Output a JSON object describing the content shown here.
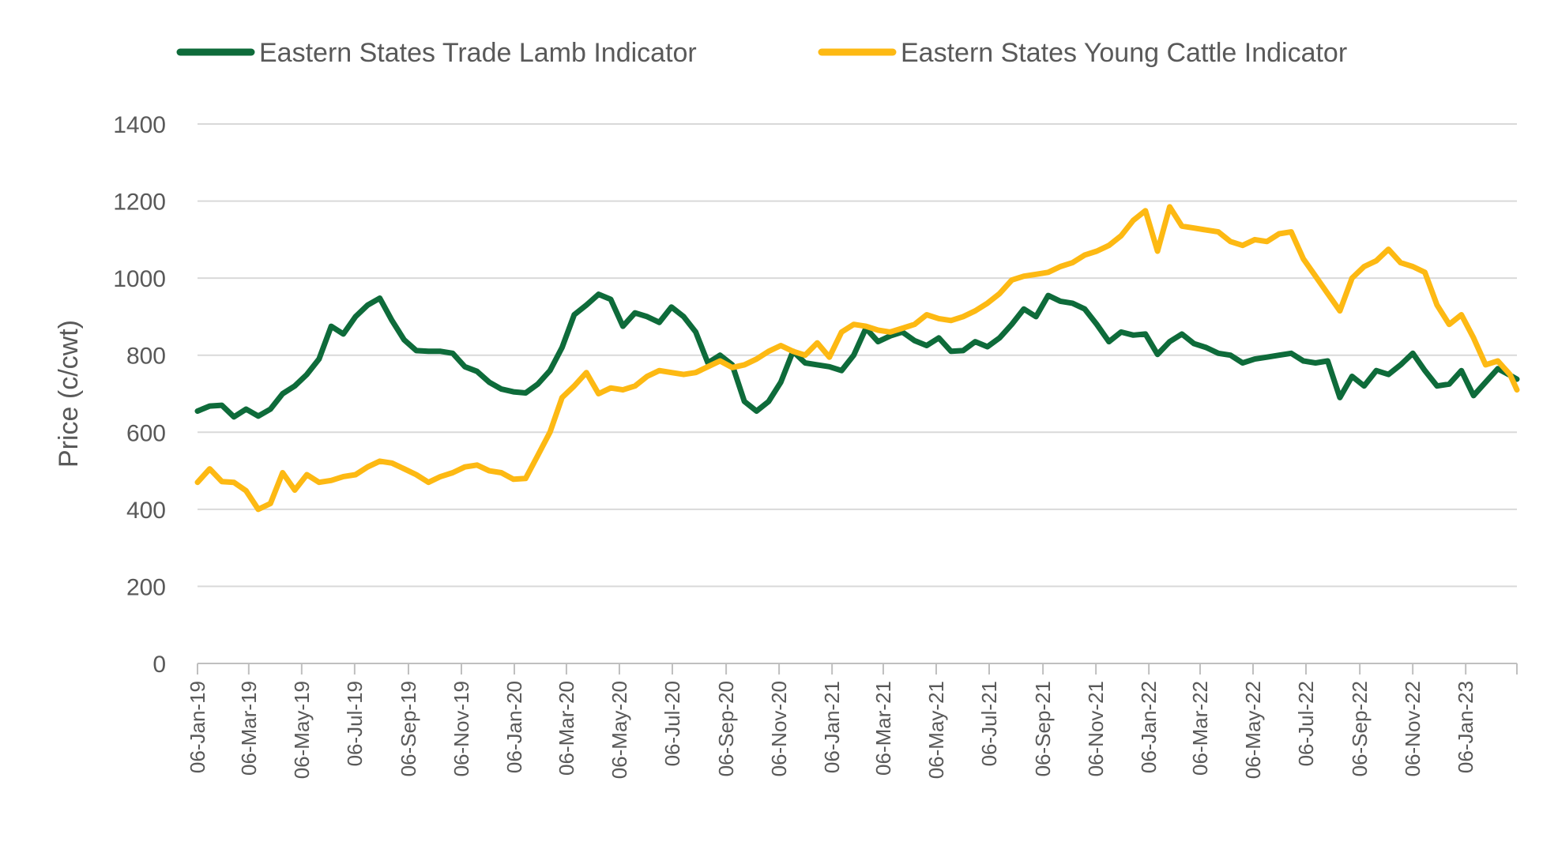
{
  "chart_data": {
    "type": "line",
    "ylabel": "Price (c/cwt)",
    "ylim": [
      0,
      1400
    ],
    "yticks": [
      0,
      200,
      400,
      600,
      800,
      1000,
      1200,
      1400
    ],
    "xlim": [
      "2019-01-06",
      "2023-03-06"
    ],
    "xtick_dates": [
      "2019-01-06",
      "2019-03-06",
      "2019-05-06",
      "2019-07-06",
      "2019-09-06",
      "2019-11-06",
      "2020-01-06",
      "2020-03-06",
      "2020-05-06",
      "2020-07-06",
      "2020-09-06",
      "2020-11-06",
      "2021-01-06",
      "2021-03-06",
      "2021-05-06",
      "2021-07-06",
      "2021-09-06",
      "2021-11-06",
      "2022-01-06",
      "2022-03-06",
      "2022-05-06",
      "2022-07-06",
      "2022-09-06",
      "2022-11-06",
      "2023-01-06"
    ],
    "xtick_labels": [
      "06-Jan-19",
      "06-Mar-19",
      "06-May-19",
      "06-Jul-19",
      "06-Sep-19",
      "06-Nov-19",
      "06-Jan-20",
      "06-Mar-20",
      "06-May-20",
      "06-Jul-20",
      "06-Sep-20",
      "06-Nov-20",
      "06-Jan-21",
      "06-Mar-21",
      "06-May-21",
      "06-Jul-21",
      "06-Sep-21",
      "06-Nov-21",
      "06-Jan-22",
      "06-Mar-22",
      "06-May-22",
      "06-Jul-22",
      "06-Sep-22",
      "06-Nov-22",
      "06-Jan-23"
    ],
    "grid": true,
    "legend_position": "top",
    "series": [
      {
        "name": "Eastern States Trade Lamb Indicator",
        "color": "#0E6B3A",
        "points": [
          [
            "2019-01-06",
            655
          ],
          [
            "2019-01-20",
            668
          ],
          [
            "2019-02-03",
            670
          ],
          [
            "2019-02-17",
            640
          ],
          [
            "2019-03-03",
            660
          ],
          [
            "2019-03-17",
            642
          ],
          [
            "2019-03-31",
            660
          ],
          [
            "2019-04-14",
            700
          ],
          [
            "2019-04-28",
            720
          ],
          [
            "2019-05-12",
            750
          ],
          [
            "2019-05-26",
            790
          ],
          [
            "2019-06-09",
            875
          ],
          [
            "2019-06-23",
            855
          ],
          [
            "2019-07-07",
            900
          ],
          [
            "2019-07-21",
            930
          ],
          [
            "2019-08-04",
            948
          ],
          [
            "2019-08-18",
            890
          ],
          [
            "2019-09-01",
            840
          ],
          [
            "2019-09-15",
            812
          ],
          [
            "2019-09-29",
            810
          ],
          [
            "2019-10-13",
            810
          ],
          [
            "2019-10-27",
            805
          ],
          [
            "2019-11-10",
            770
          ],
          [
            "2019-11-24",
            758
          ],
          [
            "2019-12-08",
            730
          ],
          [
            "2019-12-22",
            712
          ],
          [
            "2020-01-05",
            705
          ],
          [
            "2020-01-19",
            702
          ],
          [
            "2020-02-02",
            725
          ],
          [
            "2020-02-16",
            760
          ],
          [
            "2020-03-01",
            820
          ],
          [
            "2020-03-15",
            905
          ],
          [
            "2020-03-29",
            930
          ],
          [
            "2020-04-12",
            958
          ],
          [
            "2020-04-26",
            945
          ],
          [
            "2020-05-10",
            875
          ],
          [
            "2020-05-24",
            910
          ],
          [
            "2020-06-07",
            900
          ],
          [
            "2020-06-21",
            885
          ],
          [
            "2020-07-05",
            925
          ],
          [
            "2020-07-19",
            900
          ],
          [
            "2020-08-02",
            860
          ],
          [
            "2020-08-16",
            780
          ],
          [
            "2020-08-30",
            800
          ],
          [
            "2020-09-13",
            775
          ],
          [
            "2020-09-27",
            680
          ],
          [
            "2020-10-11",
            655
          ],
          [
            "2020-10-25",
            680
          ],
          [
            "2020-11-08",
            730
          ],
          [
            "2020-11-22",
            810
          ],
          [
            "2020-12-06",
            780
          ],
          [
            "2020-12-20",
            775
          ],
          [
            "2021-01-03",
            770
          ],
          [
            "2021-01-17",
            760
          ],
          [
            "2021-01-31",
            800
          ],
          [
            "2021-02-14",
            870
          ],
          [
            "2021-02-28",
            835
          ],
          [
            "2021-03-14",
            850
          ],
          [
            "2021-03-28",
            860
          ],
          [
            "2021-04-11",
            838
          ],
          [
            "2021-04-25",
            825
          ],
          [
            "2021-05-09",
            845
          ],
          [
            "2021-05-23",
            810
          ],
          [
            "2021-06-06",
            812
          ],
          [
            "2021-06-20",
            835
          ],
          [
            "2021-07-04",
            822
          ],
          [
            "2021-07-18",
            845
          ],
          [
            "2021-08-01",
            880
          ],
          [
            "2021-08-15",
            920
          ],
          [
            "2021-08-29",
            900
          ],
          [
            "2021-09-12",
            955
          ],
          [
            "2021-09-26",
            940
          ],
          [
            "2021-10-10",
            935
          ],
          [
            "2021-10-24",
            920
          ],
          [
            "2021-11-07",
            880
          ],
          [
            "2021-11-21",
            835
          ],
          [
            "2021-12-05",
            860
          ],
          [
            "2021-12-19",
            852
          ],
          [
            "2022-01-02",
            855
          ],
          [
            "2022-01-16",
            802
          ],
          [
            "2022-01-30",
            835
          ],
          [
            "2022-02-13",
            855
          ],
          [
            "2022-02-27",
            830
          ],
          [
            "2022-03-13",
            820
          ],
          [
            "2022-03-27",
            805
          ],
          [
            "2022-04-10",
            800
          ],
          [
            "2022-04-24",
            780
          ],
          [
            "2022-05-08",
            790
          ],
          [
            "2022-05-22",
            795
          ],
          [
            "2022-06-05",
            800
          ],
          [
            "2022-06-19",
            805
          ],
          [
            "2022-07-03",
            785
          ],
          [
            "2022-07-17",
            780
          ],
          [
            "2022-07-31",
            785
          ],
          [
            "2022-08-14",
            690
          ],
          [
            "2022-08-28",
            745
          ],
          [
            "2022-09-11",
            720
          ],
          [
            "2022-09-25",
            760
          ],
          [
            "2022-10-09",
            750
          ],
          [
            "2022-10-23",
            775
          ],
          [
            "2022-11-06",
            805
          ],
          [
            "2022-11-20",
            760
          ],
          [
            "2022-12-04",
            720
          ],
          [
            "2022-12-18",
            725
          ],
          [
            "2023-01-01",
            760
          ],
          [
            "2023-01-15",
            695
          ],
          [
            "2023-01-29",
            730
          ],
          [
            "2023-02-12",
            765
          ],
          [
            "2023-02-26",
            748
          ],
          [
            "2023-03-06",
            738
          ]
        ]
      },
      {
        "name": "Eastern States Young Cattle Indicator",
        "color": "#FDB913",
        "points": [
          [
            "2019-01-06",
            470
          ],
          [
            "2019-01-20",
            505
          ],
          [
            "2019-02-03",
            472
          ],
          [
            "2019-02-17",
            470
          ],
          [
            "2019-03-03",
            448
          ],
          [
            "2019-03-17",
            400
          ],
          [
            "2019-03-31",
            415
          ],
          [
            "2019-04-14",
            495
          ],
          [
            "2019-04-28",
            450
          ],
          [
            "2019-05-12",
            490
          ],
          [
            "2019-05-26",
            470
          ],
          [
            "2019-06-09",
            475
          ],
          [
            "2019-06-23",
            485
          ],
          [
            "2019-07-07",
            490
          ],
          [
            "2019-07-21",
            510
          ],
          [
            "2019-08-04",
            525
          ],
          [
            "2019-08-18",
            520
          ],
          [
            "2019-09-01",
            505
          ],
          [
            "2019-09-15",
            490
          ],
          [
            "2019-09-29",
            470
          ],
          [
            "2019-10-13",
            485
          ],
          [
            "2019-10-27",
            495
          ],
          [
            "2019-11-10",
            510
          ],
          [
            "2019-11-24",
            515
          ],
          [
            "2019-12-08",
            500
          ],
          [
            "2019-12-22",
            495
          ],
          [
            "2020-01-05",
            478
          ],
          [
            "2020-01-19",
            480
          ],
          [
            "2020-02-02",
            540
          ],
          [
            "2020-02-16",
            600
          ],
          [
            "2020-03-01",
            690
          ],
          [
            "2020-03-15",
            720
          ],
          [
            "2020-03-29",
            755
          ],
          [
            "2020-04-12",
            700
          ],
          [
            "2020-04-26",
            715
          ],
          [
            "2020-05-10",
            710
          ],
          [
            "2020-05-24",
            720
          ],
          [
            "2020-06-07",
            745
          ],
          [
            "2020-06-21",
            760
          ],
          [
            "2020-07-05",
            755
          ],
          [
            "2020-07-19",
            750
          ],
          [
            "2020-08-02",
            755
          ],
          [
            "2020-08-16",
            770
          ],
          [
            "2020-08-30",
            785
          ],
          [
            "2020-09-13",
            768
          ],
          [
            "2020-09-27",
            775
          ],
          [
            "2020-10-11",
            790
          ],
          [
            "2020-10-25",
            810
          ],
          [
            "2020-11-08",
            825
          ],
          [
            "2020-11-22",
            810
          ],
          [
            "2020-12-06",
            800
          ],
          [
            "2020-12-20",
            832
          ],
          [
            "2021-01-03",
            795
          ],
          [
            "2021-01-17",
            860
          ],
          [
            "2021-01-31",
            880
          ],
          [
            "2021-02-14",
            875
          ],
          [
            "2021-02-28",
            865
          ],
          [
            "2021-03-14",
            860
          ],
          [
            "2021-03-28",
            870
          ],
          [
            "2021-04-11",
            880
          ],
          [
            "2021-04-25",
            905
          ],
          [
            "2021-05-09",
            895
          ],
          [
            "2021-05-23",
            890
          ],
          [
            "2021-06-06",
            900
          ],
          [
            "2021-06-20",
            915
          ],
          [
            "2021-07-04",
            935
          ],
          [
            "2021-07-18",
            960
          ],
          [
            "2021-08-01",
            995
          ],
          [
            "2021-08-15",
            1005
          ],
          [
            "2021-08-29",
            1010
          ],
          [
            "2021-09-12",
            1015
          ],
          [
            "2021-09-26",
            1030
          ],
          [
            "2021-10-10",
            1040
          ],
          [
            "2021-10-24",
            1060
          ],
          [
            "2021-11-07",
            1070
          ],
          [
            "2021-11-21",
            1085
          ],
          [
            "2021-12-05",
            1110
          ],
          [
            "2021-12-19",
            1150
          ],
          [
            "2022-01-02",
            1175
          ],
          [
            "2022-01-16",
            1070
          ],
          [
            "2022-01-30",
            1185
          ],
          [
            "2022-02-13",
            1135
          ],
          [
            "2022-02-27",
            1130
          ],
          [
            "2022-03-13",
            1125
          ],
          [
            "2022-03-27",
            1120
          ],
          [
            "2022-04-10",
            1095
          ],
          [
            "2022-04-24",
            1085
          ],
          [
            "2022-05-08",
            1100
          ],
          [
            "2022-05-22",
            1095
          ],
          [
            "2022-06-05",
            1115
          ],
          [
            "2022-06-19",
            1120
          ],
          [
            "2022-07-03",
            1050
          ],
          [
            "2022-07-17",
            1005
          ],
          [
            "2022-07-31",
            960
          ],
          [
            "2022-08-14",
            915
          ],
          [
            "2022-08-28",
            1000
          ],
          [
            "2022-09-11",
            1030
          ],
          [
            "2022-09-25",
            1045
          ],
          [
            "2022-10-09",
            1075
          ],
          [
            "2022-10-23",
            1040
          ],
          [
            "2022-11-06",
            1030
          ],
          [
            "2022-11-20",
            1015
          ],
          [
            "2022-12-04",
            930
          ],
          [
            "2022-12-18",
            880
          ],
          [
            "2023-01-01",
            905
          ],
          [
            "2023-01-15",
            845
          ],
          [
            "2023-01-29",
            775
          ],
          [
            "2023-02-12",
            785
          ],
          [
            "2023-02-26",
            750
          ],
          [
            "2023-03-06",
            710
          ]
        ]
      }
    ]
  }
}
